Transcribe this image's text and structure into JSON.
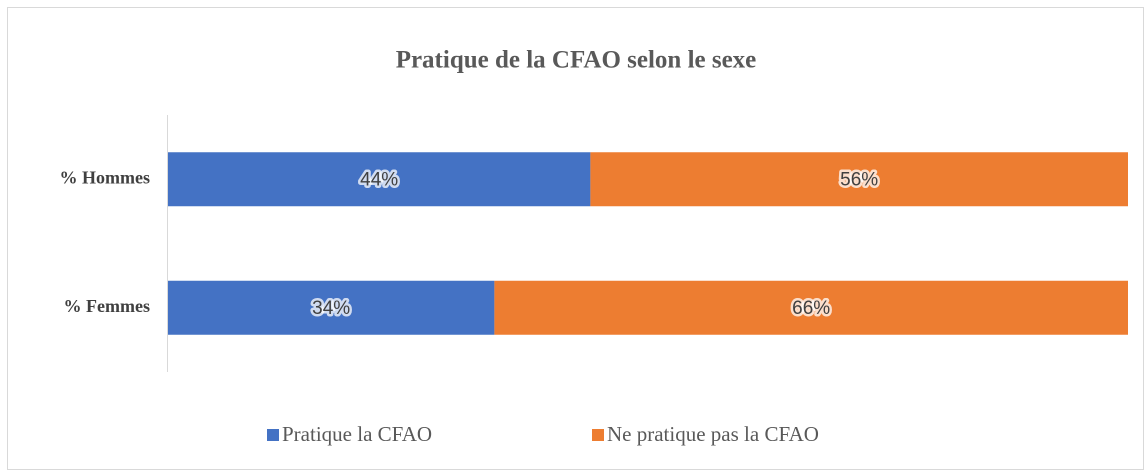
{
  "chart_data": {
    "type": "stacked-bar-horizontal",
    "title": "Pratique de la CFAO selon le sexe",
    "categories": [
      "% Hommes",
      "% Femmes"
    ],
    "series": [
      {
        "name": "Pratique la CFAO",
        "color": "#4472c4",
        "values": [
          44,
          34
        ],
        "value_labels": [
          "44%",
          "34%"
        ]
      },
      {
        "name": "Ne pratique pas la CFAO",
        "color": "#ed7d31",
        "values": [
          56,
          66
        ],
        "value_labels": [
          "56%",
          "66%"
        ]
      }
    ]
  }
}
